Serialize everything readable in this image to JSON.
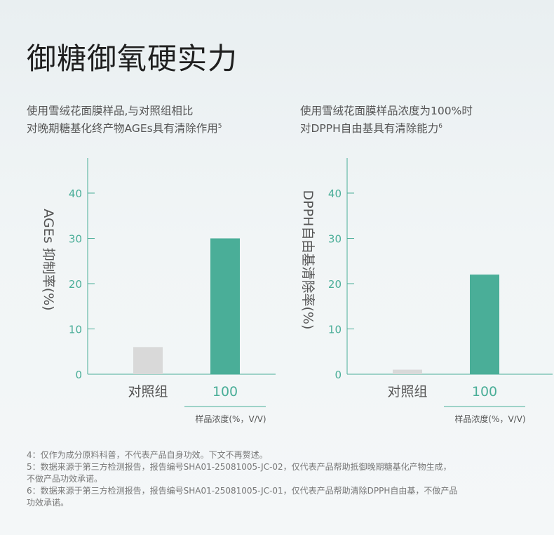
{
  "title": "御糖御氧硬实力",
  "charts_text": [
    {
      "desc_line1": "使用雪绒花面膜样品,与对照组相比",
      "desc_line2": "对晚期糖基化终产物AGEs具有清除作用",
      "desc_sup": "5"
    },
    {
      "desc_line1": "使用雪绒花面膜样品浓度为100%时",
      "desc_line2": "对DPPH自由基具有清除能力",
      "desc_sup": "6"
    }
  ],
  "footnotes": [
    "4：仅作为成分原料科普，不代表产品自身功效。下文不再赘述。",
    "5：数据来源于第三方检测报告，报告编号SHA01-25081005-JC-02，仅代表产品帮助抵御晚期糖基化产物生成，",
    "不做产品功效承诺。",
    "6：数据来源于第三方检测报告，报告编号SHA01-25081005-JC-01，仅代表产品帮助清除DPPH自由基，不做产品",
    "功效承诺。"
  ],
  "colors": {
    "accent": "#4aae98",
    "control": "#d9d9d9",
    "axis_text": "#4aae98",
    "label_text": "#555555"
  },
  "chart_data": [
    {
      "type": "bar",
      "categories": [
        "对照组",
        "100"
      ],
      "values": [
        6,
        30
      ],
      "ylabel": "AGEs 抑制率(%)",
      "xlabel": "样品浓度(%，V/V)",
      "yticks": [
        0,
        10,
        20,
        30,
        40
      ],
      "ylim": [
        0,
        43
      ],
      "bar_colors": [
        "#d9d9d9",
        "#4aae98"
      ],
      "grid": false
    },
    {
      "type": "bar",
      "categories": [
        "对照组",
        "100"
      ],
      "values": [
        1,
        22
      ],
      "ylabel": "DPPH自由基清除率(%)",
      "xlabel": "样品浓度(%，V/V)",
      "yticks": [
        0,
        10,
        20,
        30,
        40
      ],
      "ylim": [
        0,
        43
      ],
      "bar_colors": [
        "#d9d9d9",
        "#4aae98"
      ],
      "grid": false
    }
  ]
}
